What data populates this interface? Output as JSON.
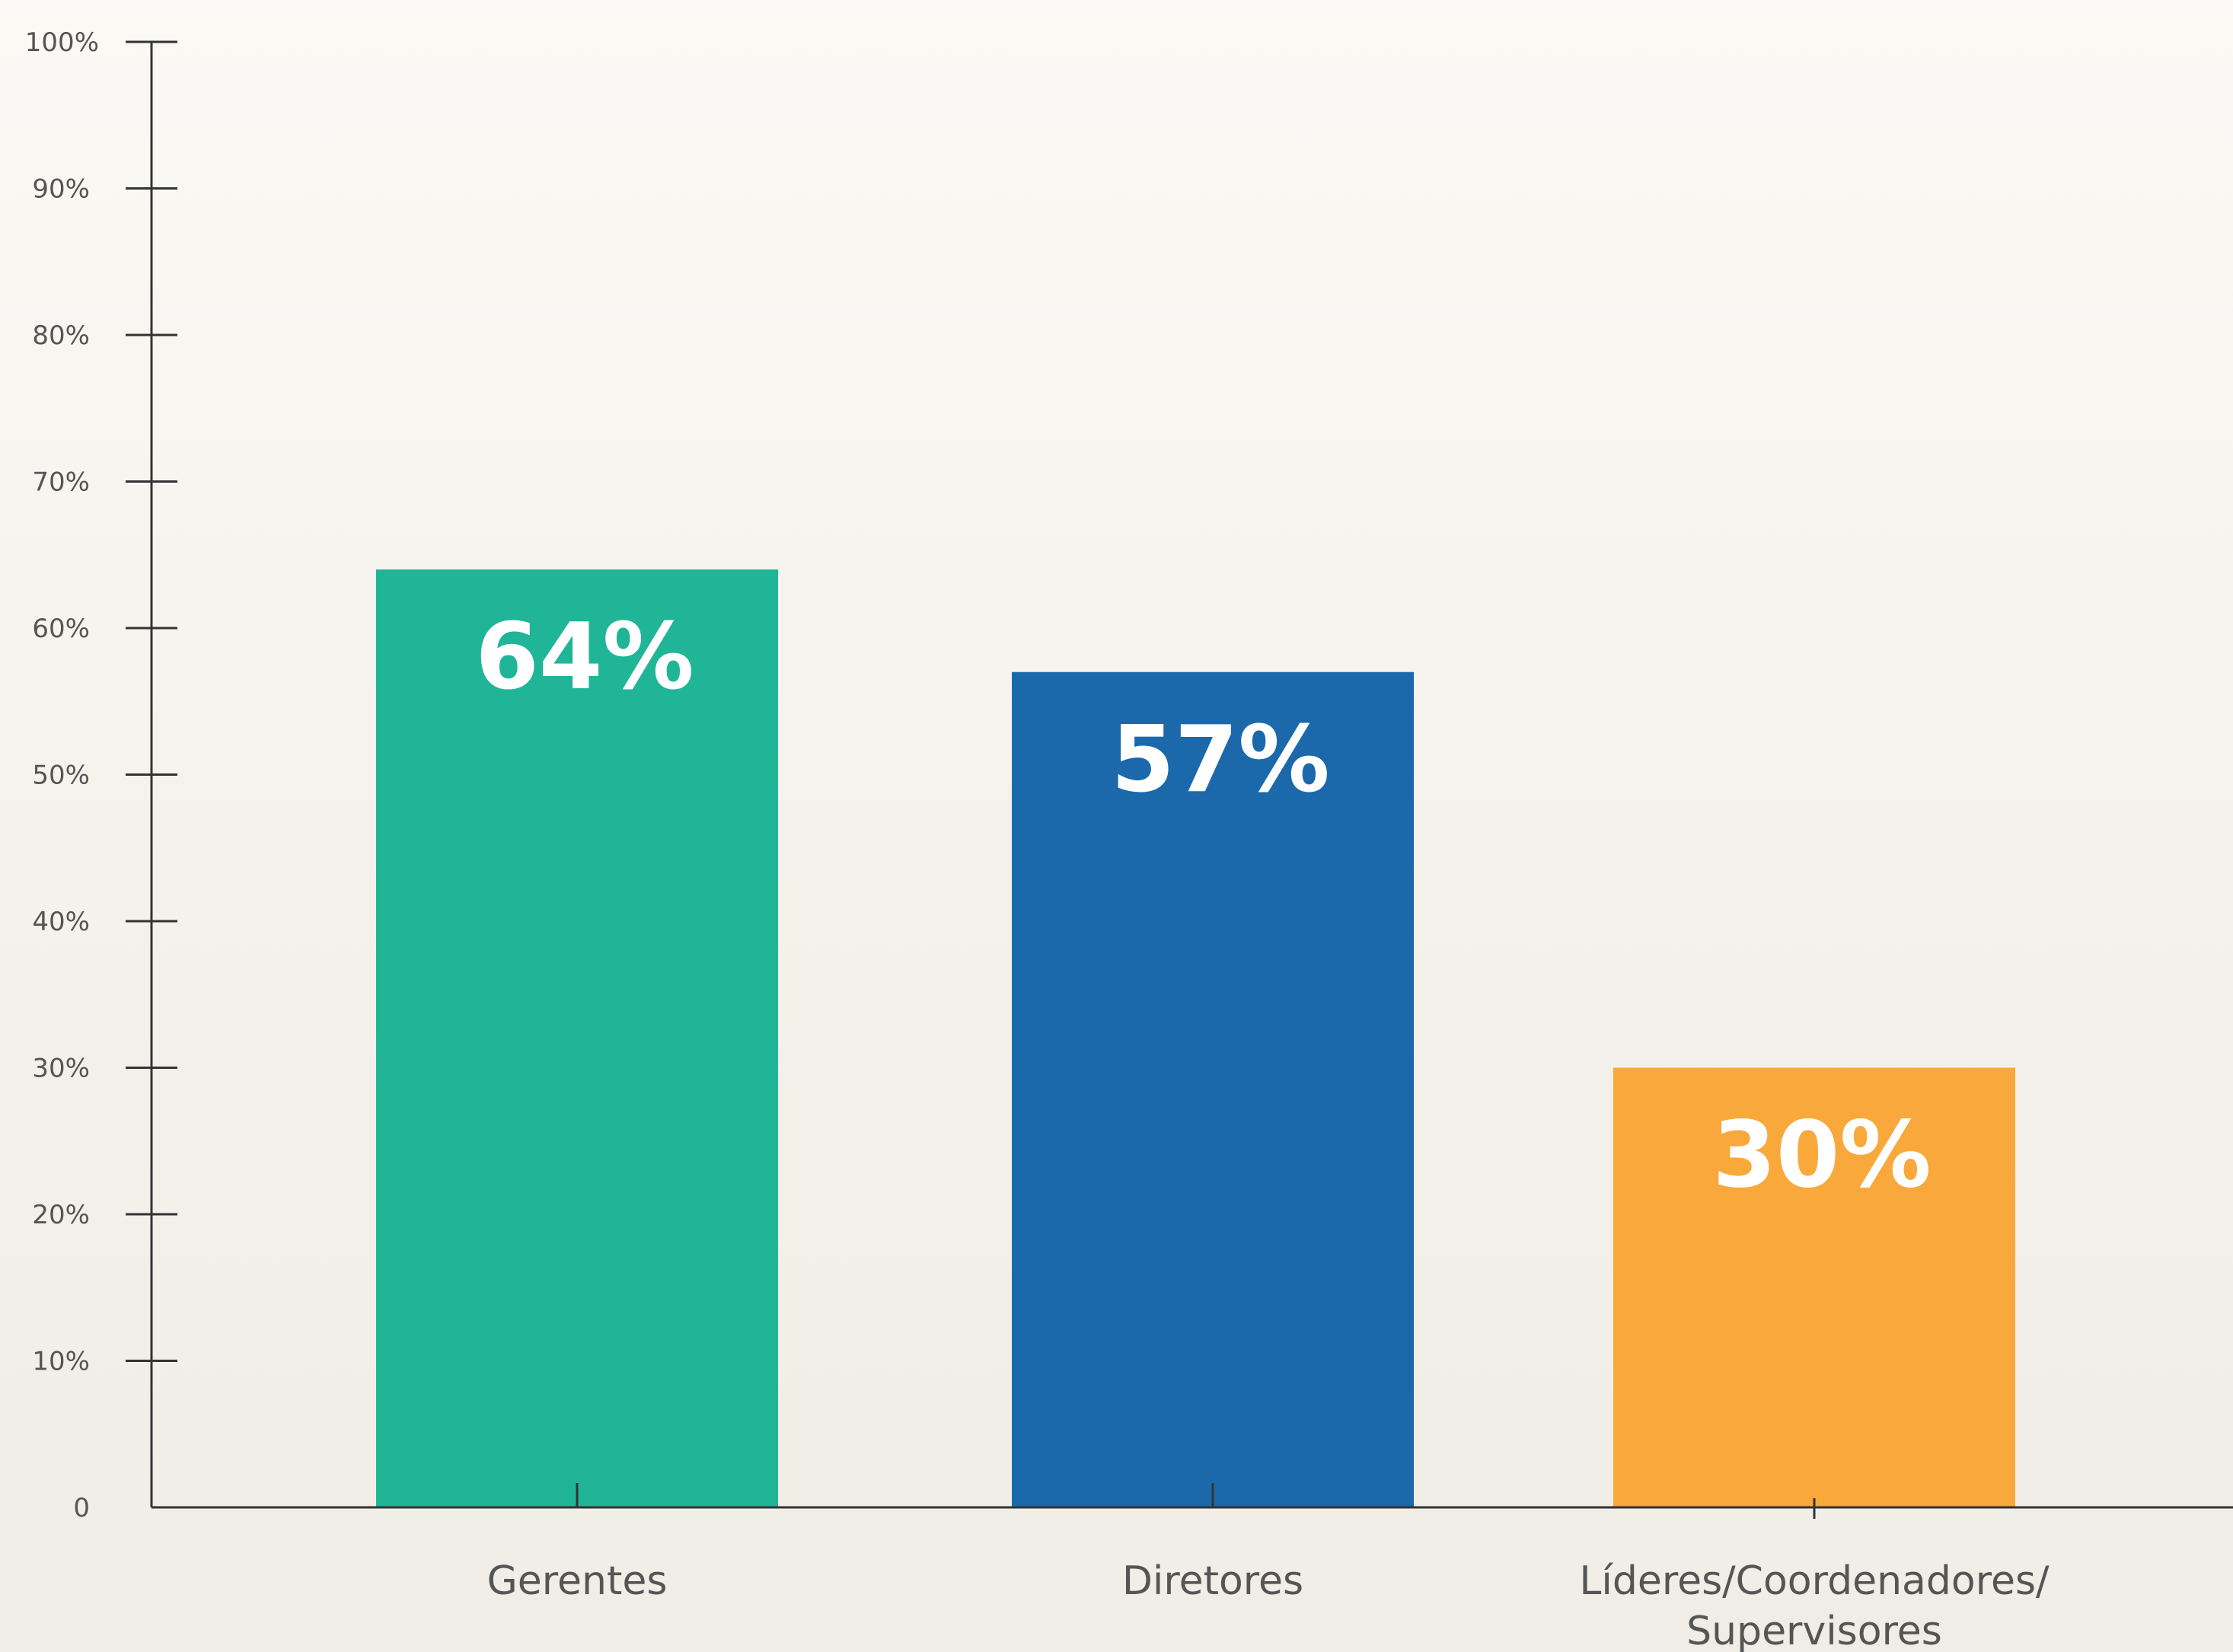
{
  "chart_data": {
    "type": "bar",
    "categories": [
      "Gerentes",
      "Diretores",
      "Líderes/Coordenadores/ Supervisores"
    ],
    "category_lines": [
      [
        "Gerentes"
      ],
      [
        "Diretores"
      ],
      [
        "Líderes/Coordenadores/",
        "Supervisores"
      ]
    ],
    "values": [
      64,
      57,
      30
    ],
    "data_labels": [
      "64%",
      "57%",
      "30%"
    ],
    "colors": [
      "#20b597",
      "#1b69ab",
      "#f9a93b"
    ],
    "ylim": [
      0,
      100
    ],
    "yticks": [
      0,
      10,
      20,
      30,
      40,
      50,
      60,
      70,
      80,
      90,
      100
    ],
    "ytick_labels": [
      "0",
      "10%",
      "20%",
      "30%",
      "40%",
      "50%",
      "60%",
      "70%",
      "80%",
      "90%",
      "100%"
    ],
    "grid": false,
    "legend": "none",
    "title": "",
    "xlabel": "",
    "ylabel": ""
  }
}
